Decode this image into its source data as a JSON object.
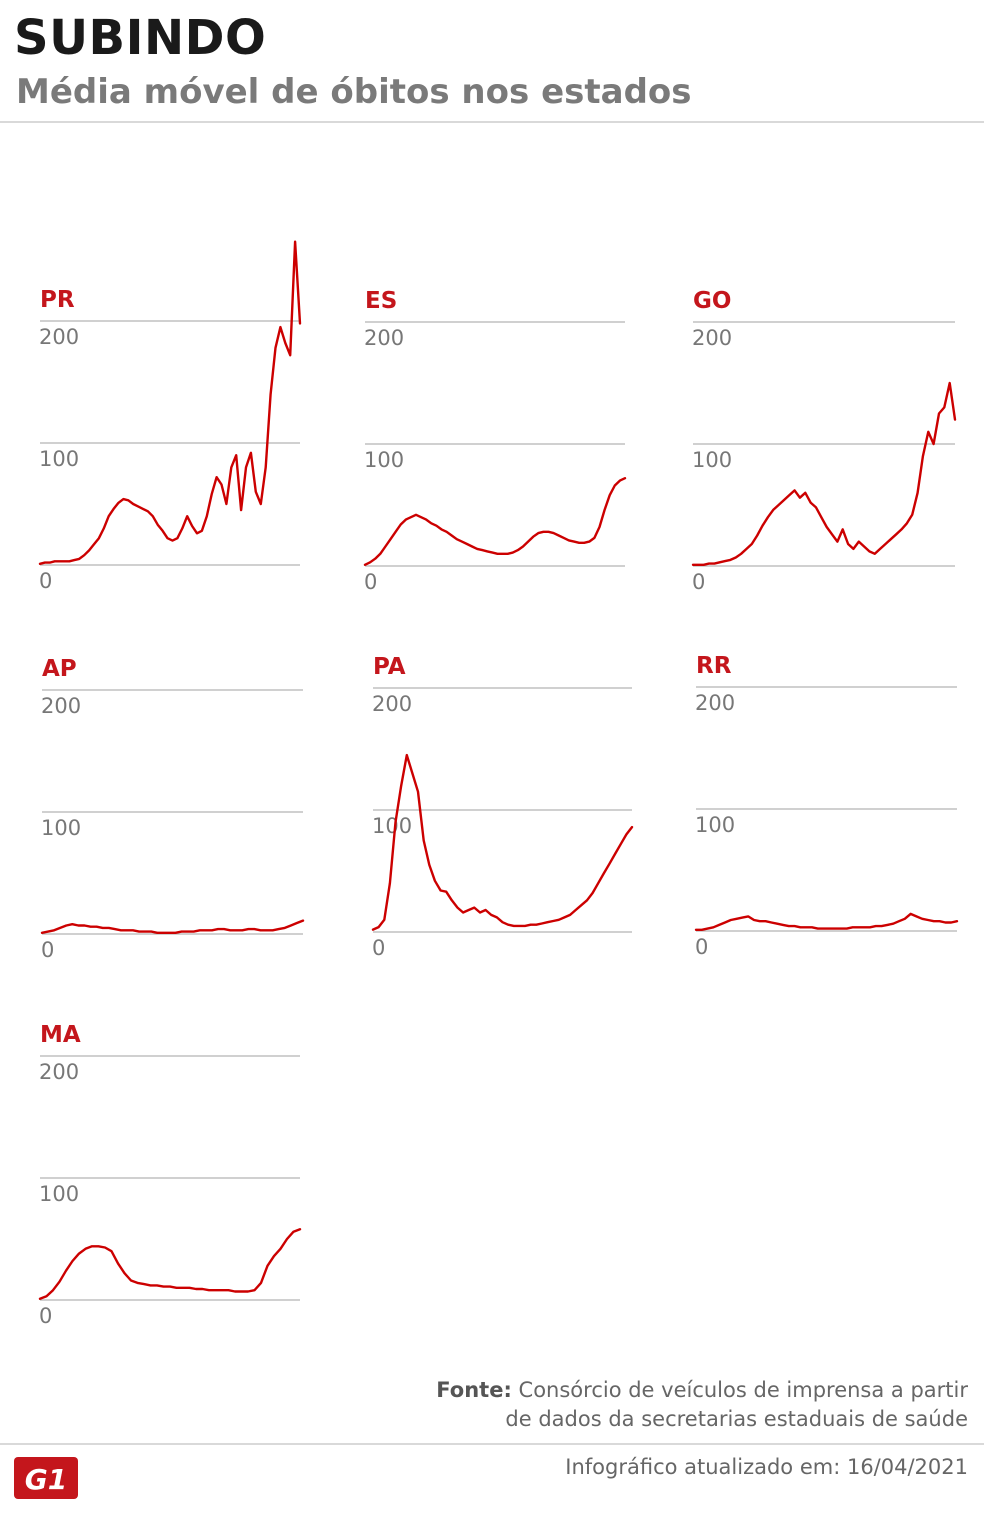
{
  "header": {
    "title": "SUBINDO",
    "subtitle": "Média móvel de óbitos nos estados"
  },
  "footer": {
    "source_label": "Fonte:",
    "source_line1": " Consórcio de veículos de imprensa a partir",
    "source_line2": "de dados da secretarias estaduais de saúde",
    "updated": "Infográfico atualizado em: 16/04/2021",
    "logo_text": "G1"
  },
  "colors": {
    "line": "#cc0000",
    "grid": "#b5b5b5",
    "tick": "#777777",
    "label": "#c4161c"
  },
  "chart_data": [
    {
      "type": "line",
      "title": "PR",
      "ylim": [
        0,
        200
      ],
      "yticks": [
        0,
        100,
        200
      ],
      "values": [
        1,
        2,
        2,
        3,
        3,
        3,
        3,
        4,
        5,
        8,
        12,
        17,
        22,
        30,
        40,
        46,
        51,
        54,
        53,
        50,
        48,
        46,
        44,
        40,
        33,
        28,
        22,
        20,
        22,
        30,
        40,
        32,
        26,
        28,
        40,
        58,
        72,
        66,
        50,
        80,
        90,
        45,
        80,
        92,
        60,
        50,
        80,
        140,
        178,
        195,
        182,
        172,
        265,
        198
      ]
    },
    {
      "type": "line",
      "title": "ES",
      "ylim": [
        0,
        200
      ],
      "yticks": [
        0,
        100,
        200
      ],
      "values": [
        1,
        3,
        6,
        10,
        16,
        22,
        28,
        34,
        38,
        40,
        42,
        40,
        38,
        35,
        33,
        30,
        28,
        25,
        22,
        20,
        18,
        16,
        14,
        13,
        12,
        11,
        10,
        10,
        10,
        11,
        13,
        16,
        20,
        24,
        27,
        28,
        28,
        27,
        25,
        23,
        21,
        20,
        19,
        19,
        20,
        23,
        32,
        46,
        58,
        66,
        70,
        72
      ]
    },
    {
      "type": "line",
      "title": "GO",
      "ylim": [
        0,
        200
      ],
      "yticks": [
        0,
        100,
        200
      ],
      "values": [
        1,
        1,
        1,
        2,
        2,
        3,
        4,
        5,
        7,
        10,
        14,
        18,
        25,
        33,
        40,
        46,
        50,
        54,
        58,
        62,
        56,
        60,
        52,
        48,
        40,
        32,
        26,
        20,
        30,
        18,
        14,
        20,
        16,
        12,
        10,
        14,
        18,
        22,
        26,
        30,
        35,
        42,
        60,
        90,
        110,
        100,
        125,
        130,
        150,
        120
      ]
    },
    {
      "type": "line",
      "title": "AP",
      "ylim": [
        0,
        200
      ],
      "yticks": [
        0,
        100,
        200
      ],
      "values": [
        1,
        2,
        3,
        5,
        7,
        8,
        7,
        7,
        6,
        6,
        5,
        5,
        4,
        3,
        3,
        3,
        2,
        2,
        2,
        1,
        1,
        1,
        1,
        2,
        2,
        2,
        3,
        3,
        3,
        4,
        4,
        3,
        3,
        3,
        4,
        4,
        3,
        3,
        3,
        4,
        5,
        7,
        9,
        11
      ]
    },
    {
      "type": "line",
      "title": "PA",
      "ylim": [
        0,
        200
      ],
      "yticks": [
        0,
        100,
        200
      ],
      "values": [
        2,
        4,
        10,
        40,
        90,
        120,
        145,
        130,
        115,
        75,
        55,
        42,
        34,
        33,
        26,
        20,
        16,
        18,
        20,
        16,
        18,
        14,
        12,
        8,
        6,
        5,
        5,
        5,
        6,
        6,
        7,
        8,
        9,
        10,
        12,
        14,
        18,
        22,
        26,
        32,
        40,
        48,
        56,
        64,
        72,
        80,
        86
      ]
    },
    {
      "type": "line",
      "title": "RR",
      "ylim": [
        0,
        200
      ],
      "yticks": [
        0,
        100,
        200
      ],
      "values": [
        1,
        1,
        2,
        3,
        5,
        7,
        9,
        10,
        11,
        12,
        9,
        8,
        8,
        7,
        6,
        5,
        4,
        4,
        3,
        3,
        3,
        2,
        2,
        2,
        2,
        2,
        2,
        3,
        3,
        3,
        3,
        4,
        4,
        5,
        6,
        8,
        10,
        14,
        12,
        10,
        9,
        8,
        8,
        7,
        7,
        8
      ]
    },
    {
      "type": "line",
      "title": "MA",
      "ylim": [
        0,
        200
      ],
      "yticks": [
        0,
        100,
        200
      ],
      "values": [
        1,
        3,
        8,
        15,
        24,
        32,
        38,
        42,
        44,
        44,
        43,
        40,
        30,
        22,
        16,
        14,
        13,
        12,
        12,
        11,
        11,
        10,
        10,
        10,
        9,
        9,
        8,
        8,
        8,
        8,
        7,
        7,
        7,
        8,
        14,
        28,
        36,
        42,
        50,
        56,
        58
      ]
    }
  ]
}
